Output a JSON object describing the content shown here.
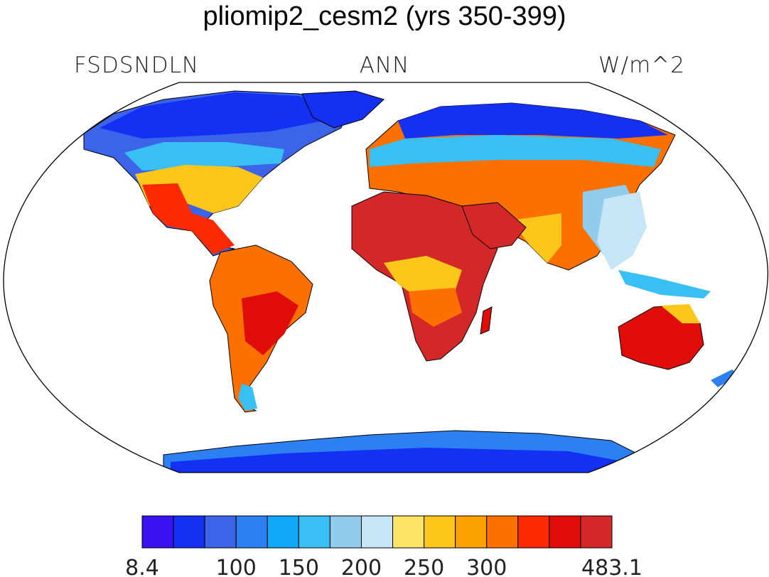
{
  "title": "pliomip2_cesm2 (yrs 350-399)",
  "variable": "FSDSNDLN",
  "season": "ANN",
  "units": "W/m^2",
  "colorbar": {
    "colors": [
      "#3a12f2",
      "#1430f2",
      "#3c64e8",
      "#2c80f2",
      "#10a8f8",
      "#38c0f4",
      "#92cced",
      "#c6e6f7",
      "#fce466",
      "#fcc61a",
      "#fca200",
      "#fc7000",
      "#fc2a00",
      "#e00c08",
      "#d42828"
    ],
    "labels": [
      {
        "text": "8.4",
        "edge": 0
      },
      {
        "text": "100",
        "edge": 3
      },
      {
        "text": "150",
        "edge": 5
      },
      {
        "text": "200",
        "edge": 7
      },
      {
        "text": "250",
        "edge": 9
      },
      {
        "text": "300",
        "edge": 11
      },
      {
        "text": "483.1",
        "edge": 15
      }
    ]
  }
}
